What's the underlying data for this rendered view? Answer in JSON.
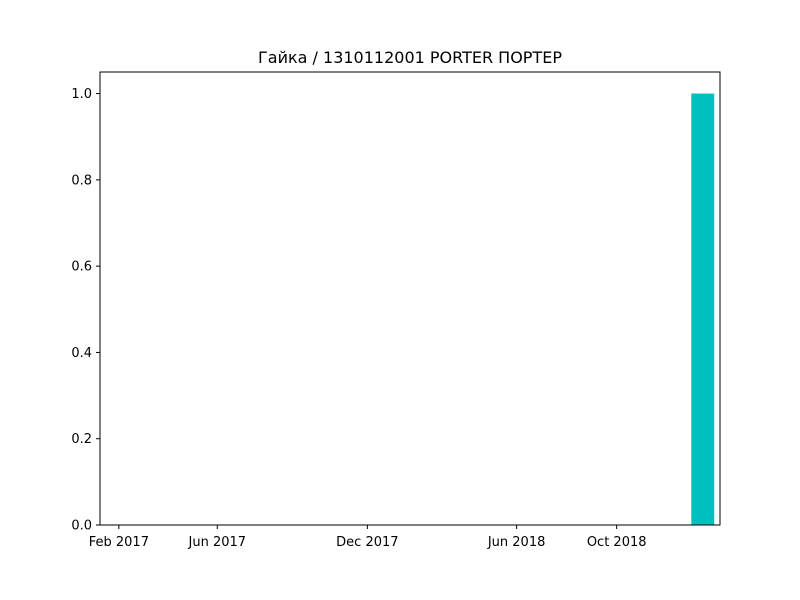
{
  "chart_data": {
    "type": "bar",
    "title": "Гайка / 1310112001 PORTER ПОРТЕР",
    "xlabel": "",
    "ylabel": "",
    "x_axis_type": "date",
    "xlim": [
      "2017-01-09",
      "2019-02-04"
    ],
    "ylim": [
      0,
      1.05
    ],
    "grid": false,
    "bar_color": "#00bfbf",
    "x_ticks": [
      {
        "date": "2017-02-01",
        "label": "Feb 2017"
      },
      {
        "date": "2017-06-01",
        "label": "Jun 2017"
      },
      {
        "date": "2017-12-01",
        "label": "Dec 2017"
      },
      {
        "date": "2018-06-01",
        "label": "Jun 2018"
      },
      {
        "date": "2018-10-01",
        "label": "Oct 2018"
      }
    ],
    "y_ticks": [
      {
        "value": 0.0,
        "label": "0.0"
      },
      {
        "value": 0.2,
        "label": "0.2"
      },
      {
        "value": 0.4,
        "label": "0.4"
      },
      {
        "value": 0.6,
        "label": "0.6"
      },
      {
        "value": 0.8,
        "label": "0.8"
      },
      {
        "value": 1.0,
        "label": "1.0"
      }
    ],
    "bars": [
      {
        "start": "2018-12-31",
        "end": "2019-01-28",
        "value": 1
      }
    ]
  }
}
